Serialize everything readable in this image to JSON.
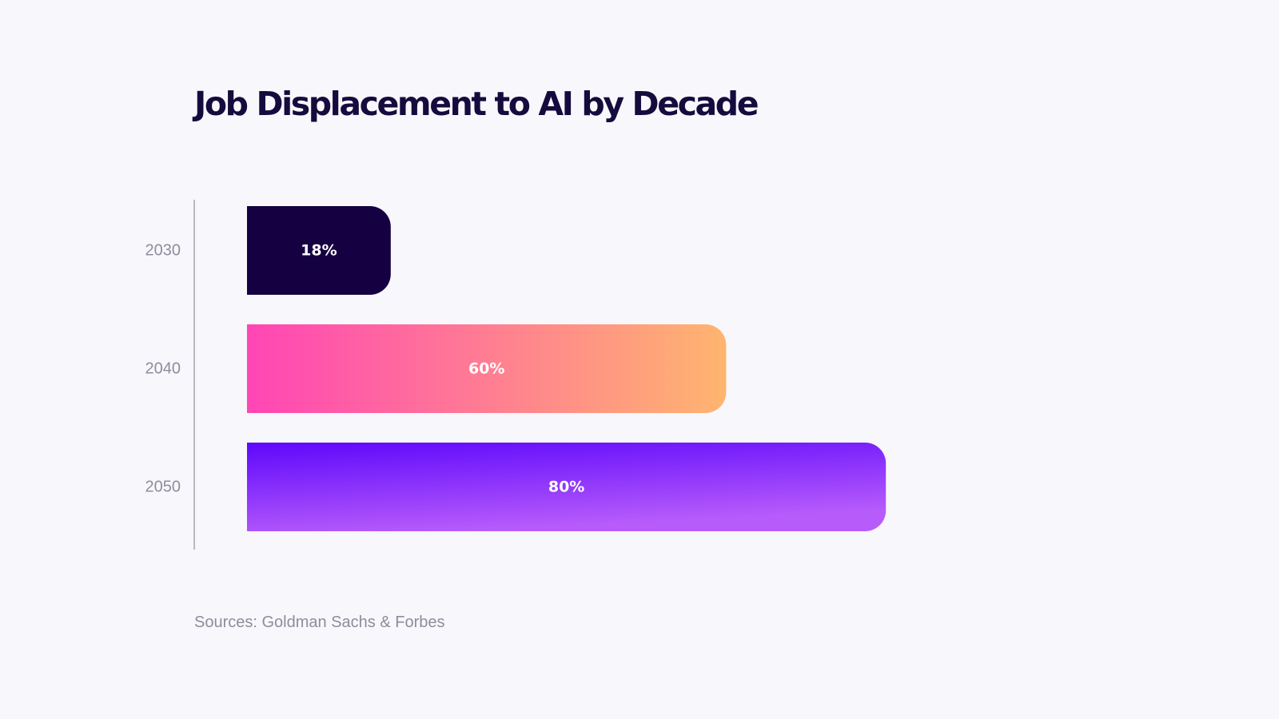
{
  "chart_data": {
    "type": "bar",
    "orientation": "horizontal",
    "title": "Job Displacement to AI by Decade",
    "categories": [
      "2030",
      "2040",
      "2050"
    ],
    "values": [
      18,
      60,
      80
    ],
    "value_labels": [
      "18%",
      "60%",
      "80%"
    ],
    "xlim": [
      0,
      100
    ],
    "xlabel": "",
    "ylabel": "",
    "grid": false,
    "bar_colors": [
      {
        "from": "#150041",
        "to": "#150041",
        "direction": "horizontal"
      },
      {
        "from": "#ff45b5",
        "to": "#ffb56f",
        "direction": "horizontal"
      },
      {
        "from": "#5e08fb",
        "to": "#b75cfb",
        "direction": "vertical"
      }
    ],
    "label_color": "#ffffff",
    "tick_color": "#8f8c9c"
  },
  "footer": {
    "source": "Sources: Goldman Sachs & Forbes"
  }
}
